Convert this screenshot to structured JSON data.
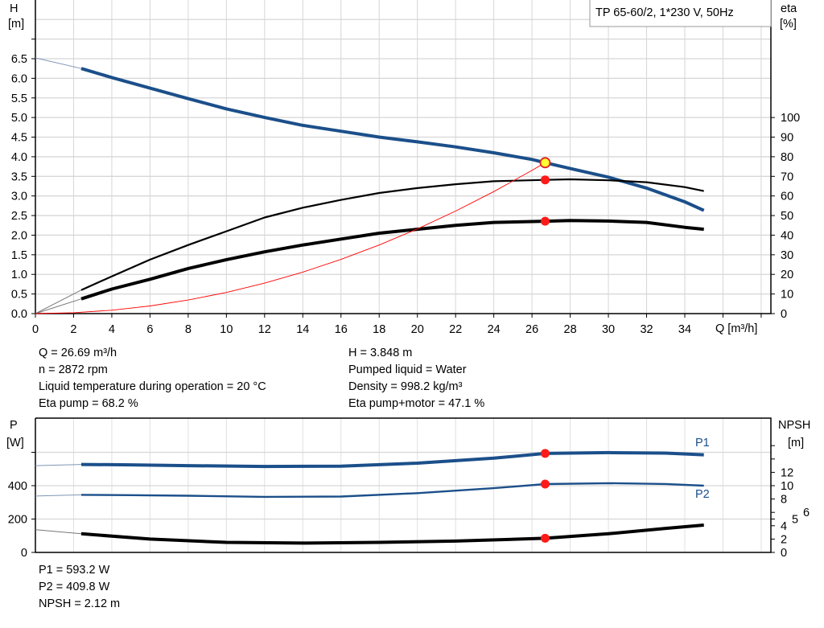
{
  "chart_data": [
    {
      "type": "line",
      "title": "TP 65-60/2, 1*230 V, 50Hz",
      "xlabel": "Q [m³/h]",
      "ylabel": "H [m]",
      "ylabel_left": [
        "H",
        "[m]"
      ],
      "ylabel_right": [
        "eta",
        "[%]"
      ],
      "xlim": [
        0,
        38.5
      ],
      "ylim": [
        0,
        8
      ],
      "eta_lim": [
        0,
        100
      ],
      "x_ticks": [
        "0",
        "2",
        "4",
        "6",
        "8",
        "10",
        "12",
        "14",
        "16",
        "18",
        "20",
        "22",
        "24",
        "26",
        "28",
        "30",
        "32",
        "34"
      ],
      "y_ticks": [
        "0.0",
        "0.5",
        "1.0",
        "1.5",
        "2.0",
        "2.5",
        "3.0",
        "3.5",
        "4.0",
        "4.5",
        "5.0",
        "5.5",
        "6.0",
        "6.5"
      ],
      "eta_ticks": [
        "0",
        "10",
        "20",
        "30",
        "40",
        "50",
        "60",
        "70",
        "80",
        "90",
        "100"
      ],
      "grid": true,
      "series": [
        {
          "key": "H",
          "axis": "H",
          "color": "#1b4f8a",
          "x": [
            2.4,
            4,
            6,
            8,
            10,
            12,
            14,
            16,
            18,
            20,
            22,
            24,
            26,
            26.69,
            28,
            30,
            32,
            34,
            35
          ],
          "y": [
            6.25,
            6.02,
            5.75,
            5.48,
            5.22,
            5.0,
            4.8,
            4.65,
            4.5,
            4.38,
            4.25,
            4.1,
            3.93,
            3.848,
            3.7,
            3.48,
            3.2,
            2.85,
            2.63
          ],
          "extrapolated": {
            "x": [
              0,
              2.4
            ],
            "y": [
              6.52,
              6.25
            ]
          }
        },
        {
          "key": "eta_pump",
          "axis": "eta",
          "color": "#000000",
          "x": [
            2.4,
            4,
            6,
            8,
            10,
            12,
            14,
            16,
            18,
            20,
            22,
            24,
            26.69,
            28,
            30,
            32,
            34,
            35
          ],
          "y": [
            12,
            19,
            27.5,
            35,
            42,
            49,
            54,
            58,
            61.5,
            64,
            66,
            67.5,
            68.2,
            68.5,
            68,
            67,
            64.5,
            62.5
          ],
          "extrapolated": {
            "x": [
              0,
              2.4
            ],
            "y": [
              0,
              12
            ]
          }
        },
        {
          "key": "eta_pump_motor",
          "axis": "eta",
          "color": "#000000",
          "x": [
            2.4,
            4,
            6,
            8,
            10,
            12,
            14,
            16,
            18,
            20,
            22,
            24,
            26.69,
            28,
            30,
            32,
            34,
            35
          ],
          "y": [
            7.5,
            12.5,
            17.5,
            23,
            27.5,
            31.5,
            35,
            38,
            41,
            43,
            45,
            46.5,
            47.1,
            47.5,
            47.2,
            46.5,
            44,
            43
          ],
          "extrapolated": {
            "x": [
              0,
              2.4
            ],
            "y": [
              0,
              7.5
            ]
          }
        },
        {
          "key": "system",
          "axis": "H",
          "color": "#ff0000",
          "x": [
            0,
            2,
            4,
            6,
            8,
            10,
            12,
            14,
            16,
            18,
            20,
            22,
            24,
            26,
            26.69
          ],
          "y": [
            0,
            0.022,
            0.086,
            0.194,
            0.346,
            0.54,
            0.778,
            1.058,
            1.382,
            1.75,
            2.16,
            2.614,
            3.11,
            3.651,
            3.848
          ]
        }
      ],
      "duty_point": {
        "Q": 26.69,
        "H": 3.848,
        "eta_pump": 68.2,
        "eta_pump_motor": 47.1
      }
    },
    {
      "type": "line",
      "xlim": [
        0,
        38.5
      ],
      "ylabel_left": [
        "P",
        "[W]"
      ],
      "ylabel_right": [
        "NPSH",
        "[m]"
      ],
      "ylim": [
        0,
        800
      ],
      "p_ticks": [
        "0",
        "200",
        "400"
      ],
      "npsh_ticks": [
        "0",
        "2",
        "4",
        "5",
        "6",
        "8",
        "10",
        "12"
      ],
      "grid": true,
      "series": [
        {
          "key": "P1",
          "name": "P1",
          "axis": "P",
          "color": "#1b4f8a",
          "x": [
            2.4,
            5,
            8,
            12,
            16,
            20,
            24,
            26.69,
            30,
            33,
            35
          ],
          "y": [
            527,
            525,
            520,
            515,
            517,
            535,
            565,
            593.2,
            598,
            595,
            585
          ],
          "extrapolated": {
            "x": [
              0,
              2.4
            ],
            "y": [
              520,
              527
            ]
          }
        },
        {
          "key": "P2",
          "name": "P2",
          "axis": "P",
          "color": "#1b4f8a",
          "x": [
            2.4,
            5,
            8,
            12,
            16,
            20,
            24,
            26.69,
            30,
            33,
            35
          ],
          "y": [
            345,
            343,
            340,
            333,
            335,
            355,
            385,
            409.8,
            415,
            410,
            400
          ],
          "extrapolated": {
            "x": [
              0,
              2.4
            ],
            "y": [
              338,
              345
            ]
          }
        },
        {
          "key": "NPSH",
          "axis": "NPSH",
          "color": "#000000",
          "x": [
            2.4,
            6,
            10,
            14,
            18,
            22,
            26.69,
            30,
            33,
            35
          ],
          "y": [
            2.8,
            2.0,
            1.5,
            1.4,
            1.5,
            1.7,
            2.12,
            2.8,
            3.6,
            4.1
          ],
          "extrapolated": {
            "x": [
              0,
              2.4
            ],
            "y": [
              3.4,
              2.8
            ]
          }
        }
      ],
      "duty_point": {
        "Q": 26.69,
        "P1": 593.2,
        "P2": 409.8,
        "NPSH": 2.12
      }
    }
  ],
  "info_top": {
    "left": [
      "Q = 26.69 m³/h",
      "n = 2872 rpm",
      "Liquid temperature during operation = 20 °C",
      "Eta pump = 68.2 %"
    ],
    "right": [
      "H = 3.848 m",
      "Pumped liquid = Water",
      "Density = 998.2 kg/m³",
      "Eta pump+motor = 47.1 %"
    ]
  },
  "info_bottom": [
    "P1 = 593.2 W",
    "P2 = 409.8 W",
    "NPSH = 2.12 m"
  ]
}
